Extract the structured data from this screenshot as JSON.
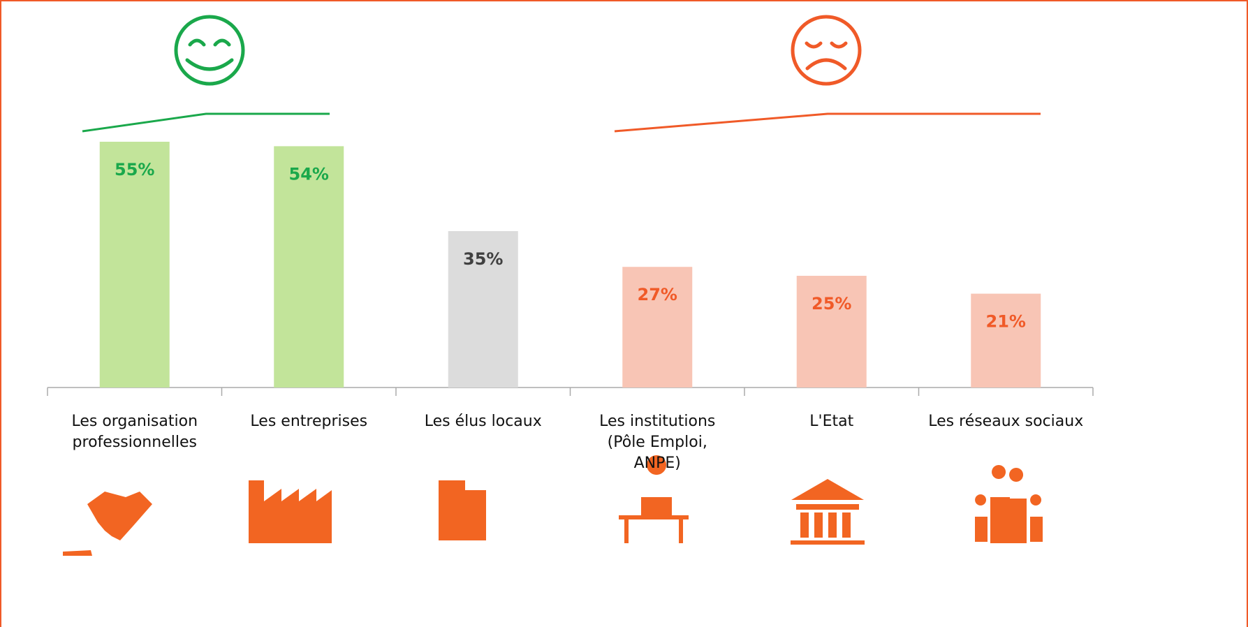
{
  "chart_data": {
    "type": "bar",
    "categories": [
      "Les organisation\nprofessionnelles",
      "Les entreprises",
      "Les élus locaux",
      "Les institutions\n(Pôle Emploi,\nANPE)",
      "L'Etat",
      "Les réseaux sociaux"
    ],
    "values": [
      55,
      54,
      35,
      27,
      25,
      21
    ],
    "value_labels": [
      "55%",
      "54%",
      "35%",
      "27%",
      "25%",
      "21%"
    ],
    "colors": [
      "#c2e49a",
      "#c2e49a",
      "#dcdcdc",
      "#f8c5b5",
      "#f8c5b5",
      "#f8c5b5"
    ],
    "label_colors": [
      "#1aa84b",
      "#1aa84b",
      "#404040",
      "#f05a28",
      "#f05a28",
      "#f05a28"
    ]
  }
}
